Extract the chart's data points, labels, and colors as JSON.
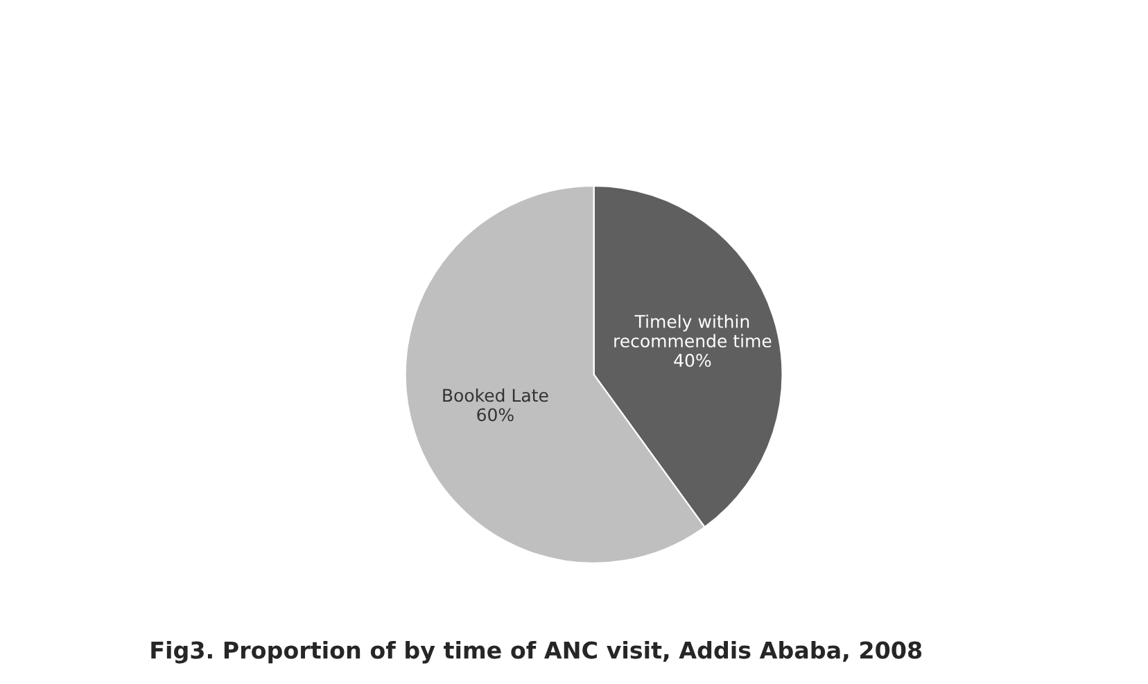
{
  "chart_data": {
    "type": "pie",
    "title": "Fig3. Proportion of by time of ANC visit, Addis Ababa, 2008",
    "categories": [
      "Timely within\nrecommende time",
      "Booked Late"
    ],
    "values": [
      40,
      60
    ],
    "value_labels": [
      "40%",
      "60%"
    ],
    "colors": [
      "#5f5f5f",
      "#bfbfbf"
    ],
    "legend": false
  }
}
